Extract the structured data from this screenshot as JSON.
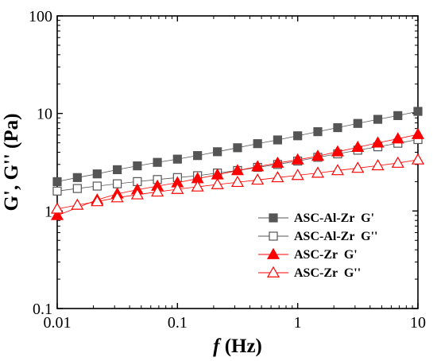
{
  "chart_data": {
    "type": "line",
    "xlabel_italic": "f",
    "xlabel_rest": " (Hz)",
    "ylabel": "G', G'' (Pa)",
    "xscale": "log",
    "yscale": "log",
    "xlim": [
      0.01,
      10
    ],
    "ylim": [
      0.1,
      100
    ],
    "grid": false,
    "legend_position": "center-right",
    "x_ticks": [
      {
        "value": 0.01,
        "label": "0.01"
      },
      {
        "value": 0.1,
        "label": "0.1"
      },
      {
        "value": 1,
        "label": "1"
      },
      {
        "value": 10,
        "label": "10"
      }
    ],
    "y_ticks": [
      {
        "value": 0.1,
        "label": "0.1"
      },
      {
        "value": 1,
        "label": "1"
      },
      {
        "value": 10,
        "label": "10"
      },
      {
        "value": 100,
        "label": "100"
      }
    ],
    "x": [
      0.01,
      0.0147,
      0.0215,
      0.0316,
      0.0464,
      0.0681,
      0.1,
      0.147,
      0.215,
      0.316,
      0.464,
      0.681,
      1,
      1.47,
      2.15,
      3.16,
      4.64,
      6.81,
      10
    ],
    "series": [
      {
        "name": "ASC-Al-Zr  G'",
        "marker": "square",
        "filled": true,
        "color": "#555555",
        "values": [
          2.0,
          2.2,
          2.4,
          2.65,
          2.9,
          3.15,
          3.4,
          3.7,
          4.05,
          4.45,
          4.9,
          5.35,
          5.9,
          6.5,
          7.15,
          7.9,
          8.7,
          9.5,
          10.5
        ]
      },
      {
        "name": "ASC-Al-Zr  G''",
        "marker": "square",
        "filled": false,
        "color": "#555555",
        "values": [
          1.6,
          1.7,
          1.8,
          1.9,
          2.0,
          2.1,
          2.2,
          2.3,
          2.45,
          2.6,
          2.8,
          3.0,
          3.25,
          3.55,
          3.85,
          4.2,
          4.55,
          4.95,
          5.4
        ]
      },
      {
        "name": "ASC-Zr  G'",
        "marker": "triangle",
        "filled": true,
        "color": "#ff0000",
        "values": [
          0.9,
          null,
          1.3,
          1.5,
          1.65,
          1.8,
          1.95,
          2.15,
          2.35,
          2.6,
          2.85,
          3.1,
          3.35,
          3.65,
          4.05,
          4.5,
          5.0,
          5.5,
          6.1
        ]
      },
      {
        "name": "ASC-Zr  G''",
        "marker": "triangle",
        "filled": false,
        "color": "#ff0000",
        "values": [
          1.05,
          1.15,
          1.25,
          1.37,
          1.47,
          1.57,
          1.67,
          1.77,
          1.87,
          1.97,
          2.08,
          2.2,
          2.32,
          2.45,
          2.6,
          2.75,
          2.92,
          3.1,
          3.35
        ]
      }
    ]
  }
}
